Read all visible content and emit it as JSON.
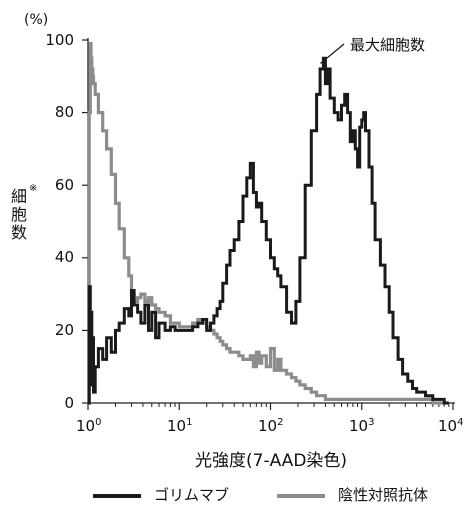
{
  "chart_data": {
    "type": "line",
    "ylabel_unit": "(%)",
    "ylabel_chars": [
      "細",
      "胞",
      "数"
    ],
    "ylabel_mark": "※",
    "xlabel": "光強度(7-AAD染色)",
    "x_scale": "log",
    "xlim": [
      1,
      10000
    ],
    "ylim": [
      0,
      100
    ],
    "y_ticks": [
      "0",
      "20",
      "40",
      "60",
      "80",
      "100"
    ],
    "x_ticks": [
      {
        "base": "10",
        "exp": "0",
        "value": 1
      },
      {
        "base": "10",
        "exp": "1",
        "value": 10
      },
      {
        "base": "10",
        "exp": "2",
        "value": 100
      },
      {
        "base": "10",
        "exp": "3",
        "value": 1000
      },
      {
        "base": "10",
        "exp": "4",
        "value": 10000
      }
    ],
    "annotation": {
      "text": "最大細胞数",
      "x": 380,
      "y": 93
    },
    "grid": false,
    "legend_position": "bottom",
    "series": [
      {
        "name": "ゴリムマブ",
        "color": "#1a1a1a",
        "x": [
          1.0,
          1.03,
          1.06,
          1.08,
          1.1,
          1.13,
          1.15,
          1.2,
          1.3,
          1.45,
          1.6,
          1.8,
          2.0,
          2.2,
          2.5,
          2.8,
          3.0,
          3.2,
          3.5,
          3.8,
          4.2,
          4.6,
          5.0,
          5.5,
          6.0,
          7.0,
          8.0,
          9.0,
          10.0,
          12.0,
          14.0,
          16.0,
          18.0,
          20.0,
          22.0,
          24.0,
          26.0,
          28.0,
          30.0,
          33.0,
          36.0,
          40.0,
          45.0,
          50.0,
          55.0,
          60.0,
          65.0,
          70.0,
          75.0,
          80.0,
          90.0,
          100.0,
          110.0,
          120.0,
          130.0,
          150.0,
          170.0,
          190.0,
          210.0,
          240.0,
          280.0,
          320.0,
          350.0,
          380.0,
          400.0,
          420.0,
          450.0,
          500.0,
          550.0,
          600.0,
          650.0,
          700.0,
          750.0,
          800.0,
          850.0,
          900.0,
          950.0,
          1000.0,
          1050.0,
          1100.0,
          1200.0,
          1300.0,
          1400.0,
          1600.0,
          1800.0,
          2000.0,
          2200.0,
          2500.0,
          2800.0,
          3200.0,
          3600.0,
          4000.0,
          5000.0,
          6000.0,
          7000.0,
          8000.0,
          9000.0
        ],
        "y": [
          0,
          32,
          10,
          25,
          5,
          18,
          3,
          10,
          15,
          12,
          18,
          14,
          20,
          22,
          26,
          24,
          31,
          27,
          25,
          22,
          27,
          20,
          25,
          18,
          22,
          20,
          21,
          20,
          20,
          20,
          21,
          22,
          23,
          20,
          22,
          24,
          26,
          28,
          33,
          38,
          42,
          45,
          50,
          57,
          62,
          66,
          58,
          54,
          55,
          50,
          45,
          40,
          37,
          35,
          32,
          25,
          22,
          28,
          40,
          60,
          75,
          85,
          92,
          95,
          88,
          92,
          84,
          80,
          78,
          82,
          85,
          80,
          72,
          75,
          70,
          65,
          76,
          78,
          80,
          75,
          65,
          55,
          45,
          38,
          32,
          25,
          18,
          12,
          8,
          6,
          4,
          3,
          2,
          1,
          1,
          0,
          0
        ]
      },
      {
        "name": "陰性対照抗体",
        "color": "#8c8c8c",
        "x": [
          1.0,
          1.03,
          1.06,
          1.08,
          1.1,
          1.13,
          1.15,
          1.2,
          1.3,
          1.45,
          1.6,
          1.8,
          2.0,
          2.2,
          2.5,
          2.8,
          3.0,
          3.2,
          3.5,
          3.8,
          4.2,
          4.6,
          5.0,
          5.5,
          6.0,
          7.0,
          8.0,
          9.0,
          10.0,
          12.0,
          14.0,
          16.0,
          18.0,
          20.0,
          22.0,
          24.0,
          26.0,
          28.0,
          30.0,
          33.0,
          36.0,
          40.0,
          45.0,
          50.0,
          55.0,
          60.0,
          65.0,
          70.0,
          75.0,
          80.0,
          90.0,
          100.0,
          110.0,
          120.0,
          130.0,
          150.0,
          170.0,
          190.0,
          210.0,
          240.0,
          280.0,
          320.0,
          350.0,
          380.0,
          400.0,
          420.0,
          450.0,
          500.0,
          550.0,
          600.0,
          650.0,
          700.0,
          750.0,
          800.0,
          850.0,
          900.0,
          950.0,
          1000.0,
          1050.0,
          1100.0,
          1200.0,
          1300.0,
          1400.0,
          1600.0,
          1800.0,
          2000.0,
          2200.0,
          2500.0,
          2800.0,
          3200.0,
          3600.0,
          4000.0,
          5000.0,
          6000.0,
          7000.0,
          8000.0,
          9000.0
        ],
        "y": [
          0,
          80,
          99,
          95,
          92,
          90,
          88,
          85,
          80,
          75,
          70,
          63,
          55,
          48,
          40,
          35,
          30,
          28,
          29,
          30,
          28,
          29,
          27,
          26,
          25,
          24,
          22,
          22,
          21,
          21,
          22,
          23,
          22,
          21,
          20,
          19,
          18,
          17,
          16,
          15,
          14,
          14,
          13,
          12,
          12,
          13,
          10,
          14,
          11,
          13,
          10,
          15,
          9,
          12,
          9,
          8,
          7,
          6,
          5,
          4,
          3,
          2,
          2,
          2,
          1,
          1,
          1,
          1,
          1,
          1,
          1,
          1,
          1,
          1,
          1,
          1,
          1,
          1,
          1,
          1,
          1,
          1,
          1,
          1,
          1,
          1,
          1,
          1,
          1,
          1,
          1,
          1,
          1,
          0,
          0,
          0,
          0
        ]
      }
    ]
  }
}
